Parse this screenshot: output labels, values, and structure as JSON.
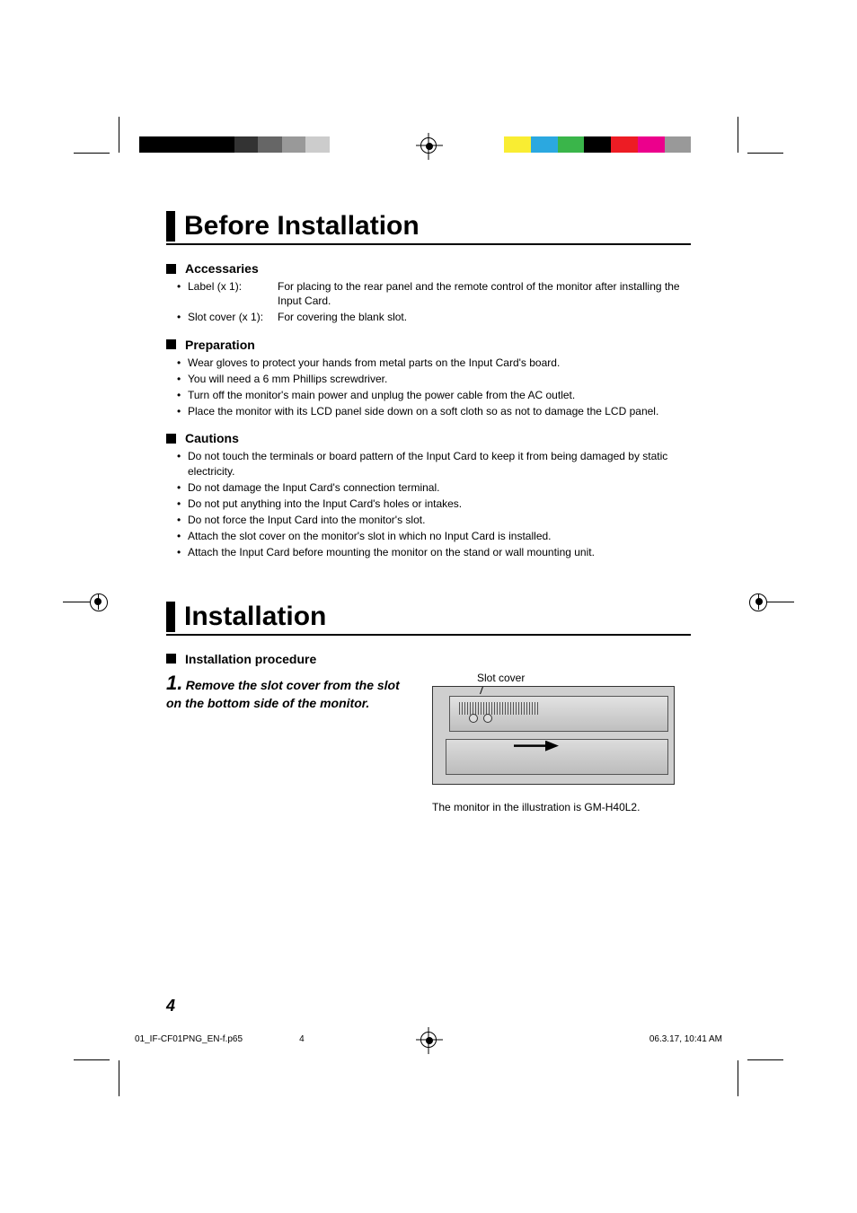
{
  "colors": {
    "text": "#000000",
    "accent_bar": "#000000",
    "rule": "#000000",
    "illus_bg": "#cfcfcf"
  },
  "colorbar_left": [
    "#000000",
    "#000000",
    "#000000",
    "#000000",
    "#333333",
    "#666666",
    "#999999",
    "#cccccc",
    "#ffffff"
  ],
  "colorbar_right": [
    "#f9ed32",
    "#2ba8e0",
    "#3ab54a",
    "#000000",
    "#ed1c24",
    "#ec008c",
    "#999999",
    "#ffffff"
  ],
  "title1": "Before Installation",
  "sections": {
    "accessaries": {
      "heading": "Accessaries",
      "items": [
        {
          "key": "Label (x 1):",
          "val": "For placing to the rear panel and the remote control of the monitor after installing the Input Card."
        },
        {
          "key": "Slot cover (x 1):",
          "val": "For covering the blank slot."
        }
      ]
    },
    "preparation": {
      "heading": "Preparation",
      "bullets": [
        "Wear gloves to protect your hands from metal parts on the Input Card's board.",
        "You will need a 6 mm Phillips screwdriver.",
        "Turn off the monitor's main power and unplug the power cable from the AC outlet.",
        "Place the monitor with its LCD panel side down on a soft cloth so as not to damage the LCD panel."
      ]
    },
    "cautions": {
      "heading": "Cautions",
      "bullets": [
        "Do not touch the terminals or board pattern of the Input Card to keep it from being damaged by static electricity.",
        "Do not damage the Input Card's connection terminal.",
        "Do not put anything into the Input Card's holes or intakes.",
        "Do not force the Input Card into the monitor's slot.",
        "Attach the slot cover on the monitor's slot in which no Input Card is installed.",
        "Attach the Input Card before mounting the monitor on the stand or wall mounting unit."
      ]
    }
  },
  "title2": "Installation",
  "install": {
    "heading": "Installation procedure",
    "step_num": "1.",
    "step_text": "Remove the slot cover from the slot on the bottom side of the monitor.",
    "illus_label": "Slot cover",
    "illus_caption": "The monitor in the illustration is GM-H40L2."
  },
  "page_number": "4",
  "footer": {
    "file": "01_IF-CF01PNG_EN-f.p65",
    "page": "4",
    "timestamp": "06.3.17, 10:41 AM"
  }
}
